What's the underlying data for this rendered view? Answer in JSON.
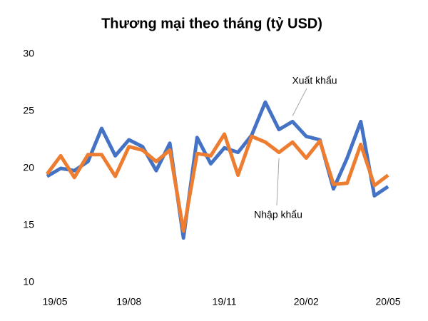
{
  "chart_data": {
    "type": "line",
    "title": "Thương mại theo tháng (tỷ USD)",
    "categories": [
      "19/05",
      null,
      null,
      null,
      null,
      null,
      "19/08",
      null,
      null,
      null,
      null,
      null,
      null,
      "19/11",
      null,
      null,
      null,
      null,
      null,
      "20/02",
      null,
      null,
      null,
      null,
      null,
      "20/05"
    ],
    "series": [
      {
        "name": "Xuất khẩu",
        "color": "#4472c4",
        "values": [
          19.3,
          20.0,
          19.8,
          20.6,
          23.5,
          21.1,
          22.5,
          21.9,
          19.8,
          22.2,
          13.9,
          22.7,
          20.4,
          21.8,
          21.4,
          22.9,
          25.8,
          23.4,
          24.1,
          22.8,
          22.5,
          18.2,
          20.9,
          24.1,
          17.6,
          18.4
        ]
      },
      {
        "name": "Nhập khẩu",
        "color": "#ed7d31",
        "values": [
          19.5,
          21.1,
          19.2,
          21.2,
          21.2,
          19.3,
          21.9,
          21.6,
          20.6,
          21.6,
          14.5,
          21.3,
          21.1,
          23.0,
          19.4,
          22.8,
          22.3,
          21.4,
          22.3,
          20.9,
          22.4,
          18.6,
          18.7,
          22.1,
          18.5,
          19.4
        ]
      }
    ],
    "ylim": [
      10,
      30
    ],
    "yticks": [
      10,
      15,
      20,
      25,
      30
    ],
    "grid": false
  }
}
